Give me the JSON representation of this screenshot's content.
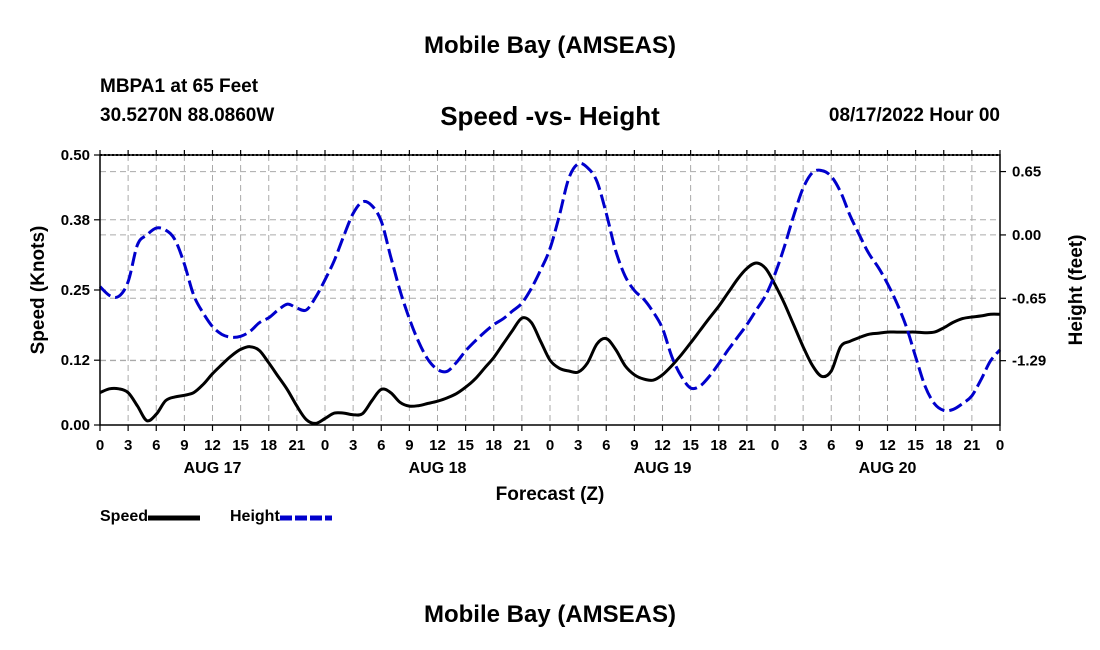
{
  "page": {
    "main_title": "Mobile Bay (AMSEAS)",
    "station": "MBPA1 at 65 Feet",
    "coords": "30.5270N  88.0860W",
    "subtitle": "Speed -vs- Height",
    "datetime": "08/17/2022 Hour 00",
    "second_title": "Mobile Bay (AMSEAS)"
  },
  "colors": {
    "speed": "#000000",
    "height": "#0000cc",
    "grid": "#aaaaaa"
  },
  "chart_data": {
    "type": "line",
    "xlabel": "Forecast (Z)",
    "ylabel": "Speed (Knots)",
    "y2label": "Height (feet)",
    "x_ticks": [
      "0",
      "3",
      "6",
      "9",
      "12",
      "15",
      "18",
      "21",
      "0",
      "3",
      "6",
      "9",
      "12",
      "15",
      "18",
      "21",
      "0",
      "3",
      "6",
      "9",
      "12",
      "15",
      "18",
      "21",
      "0",
      "3",
      "6",
      "9",
      "12",
      "15",
      "18",
      "21",
      "0"
    ],
    "day_labels": [
      {
        "label": "AUG 17",
        "hour": 12
      },
      {
        "label": "AUG 18",
        "hour": 36
      },
      {
        "label": "AUG 19",
        "hour": 60
      },
      {
        "label": "AUG 20",
        "hour": 84
      }
    ],
    "xlim": [
      0,
      96
    ],
    "ylim": [
      0,
      0.5
    ],
    "y_ticks": [
      "0.00",
      "0.12",
      "0.25",
      "0.38",
      "0.50"
    ],
    "y2lim": [
      -1.95,
      0.82
    ],
    "y2_ticks": [
      "0.65",
      "0.00",
      "-0.65",
      "-1.29"
    ],
    "legend": {
      "position": "bottom-left",
      "speed_label": "Speed",
      "height_label": "Height"
    },
    "series": [
      {
        "name": "Speed",
        "x": [
          0,
          1,
          2,
          3,
          4,
          5,
          6,
          7,
          8,
          9,
          10,
          11,
          12,
          13,
          14,
          15,
          16,
          17,
          18,
          19,
          20,
          21,
          22,
          23,
          24,
          25,
          26,
          27,
          28,
          29,
          30,
          31,
          32,
          33,
          34,
          35,
          36,
          37,
          38,
          39,
          40,
          41,
          42,
          43,
          44,
          45,
          46,
          47,
          48,
          49,
          50,
          51,
          52,
          53,
          54,
          55,
          56,
          57,
          58,
          59,
          60,
          61,
          62,
          63,
          64,
          65,
          66,
          67,
          68,
          69,
          70,
          71,
          72,
          73,
          74,
          75,
          76,
          77,
          78,
          79,
          80,
          81,
          82,
          83,
          84,
          85,
          86,
          87,
          88,
          89,
          90,
          91,
          92,
          93,
          94,
          95,
          96
        ],
        "values": [
          0.06,
          0.067,
          0.067,
          0.06,
          0.035,
          0.008,
          0.02,
          0.045,
          0.052,
          0.055,
          0.06,
          0.075,
          0.095,
          0.112,
          0.128,
          0.14,
          0.145,
          0.138,
          0.115,
          0.09,
          0.065,
          0.035,
          0.01,
          0.003,
          0.012,
          0.022,
          0.022,
          0.019,
          0.021,
          0.045,
          0.066,
          0.06,
          0.042,
          0.035,
          0.036,
          0.04,
          0.044,
          0.05,
          0.058,
          0.07,
          0.085,
          0.105,
          0.125,
          0.15,
          0.175,
          0.198,
          0.19,
          0.155,
          0.12,
          0.105,
          0.1,
          0.098,
          0.115,
          0.15,
          0.16,
          0.14,
          0.11,
          0.093,
          0.085,
          0.083,
          0.093,
          0.11,
          0.13,
          0.152,
          0.175,
          0.198,
          0.22,
          0.245,
          0.27,
          0.29,
          0.3,
          0.29,
          0.26,
          0.225,
          0.185,
          0.145,
          0.11,
          0.09,
          0.1,
          0.145,
          0.155,
          0.162,
          0.168,
          0.17,
          0.172,
          0.172,
          0.172,
          0.172,
          0.171,
          0.172,
          0.18,
          0.19,
          0.197,
          0.2,
          0.202,
          0.205,
          0.205
        ]
      },
      {
        "name": "Height",
        "x": [
          0,
          1,
          2,
          3,
          4,
          5,
          6,
          7,
          8,
          9,
          10,
          11,
          12,
          13,
          14,
          15,
          16,
          17,
          18,
          19,
          20,
          21,
          22,
          23,
          24,
          25,
          26,
          27,
          28,
          29,
          30,
          31,
          32,
          33,
          34,
          35,
          36,
          37,
          38,
          39,
          40,
          41,
          42,
          43,
          44,
          45,
          46,
          47,
          48,
          49,
          50,
          51,
          52,
          53,
          54,
          55,
          56,
          57,
          58,
          59,
          60,
          61,
          62,
          63,
          64,
          65,
          66,
          67,
          68,
          69,
          70,
          71,
          72,
          73,
          74,
          75,
          76,
          77,
          78,
          79,
          80,
          81,
          82,
          83,
          84,
          85,
          86,
          87,
          88,
          89,
          90,
          91,
          92,
          93,
          94,
          95,
          96
        ],
        "values": [
          -0.53,
          -0.62,
          -0.63,
          -0.48,
          -0.1,
          0.0,
          0.07,
          0.05,
          -0.05,
          -0.3,
          -0.62,
          -0.8,
          -0.94,
          -1.02,
          -1.05,
          -1.04,
          -0.99,
          -0.9,
          -0.85,
          -0.77,
          -0.71,
          -0.75,
          -0.77,
          -0.64,
          -0.46,
          -0.26,
          -0.01,
          0.22,
          0.34,
          0.3,
          0.14,
          -0.22,
          -0.57,
          -0.86,
          -1.1,
          -1.28,
          -1.38,
          -1.4,
          -1.31,
          -1.19,
          -1.09,
          -1.0,
          -0.92,
          -0.86,
          -0.78,
          -0.7,
          -0.55,
          -0.36,
          -0.14,
          0.2,
          0.58,
          0.73,
          0.69,
          0.55,
          0.22,
          -0.16,
          -0.42,
          -0.57,
          -0.66,
          -0.79,
          -0.96,
          -1.25,
          -1.45,
          -1.57,
          -1.55,
          -1.45,
          -1.32,
          -1.18,
          -1.05,
          -0.92,
          -0.77,
          -0.62,
          -0.4,
          -0.12,
          0.2,
          0.48,
          0.64,
          0.66,
          0.6,
          0.44,
          0.2,
          0.0,
          -0.19,
          -0.33,
          -0.5,
          -0.7,
          -0.94,
          -1.25,
          -1.55,
          -1.73,
          -1.8,
          -1.79,
          -1.73,
          -1.65,
          -1.48,
          -1.29,
          -1.18
        ]
      }
    ]
  }
}
